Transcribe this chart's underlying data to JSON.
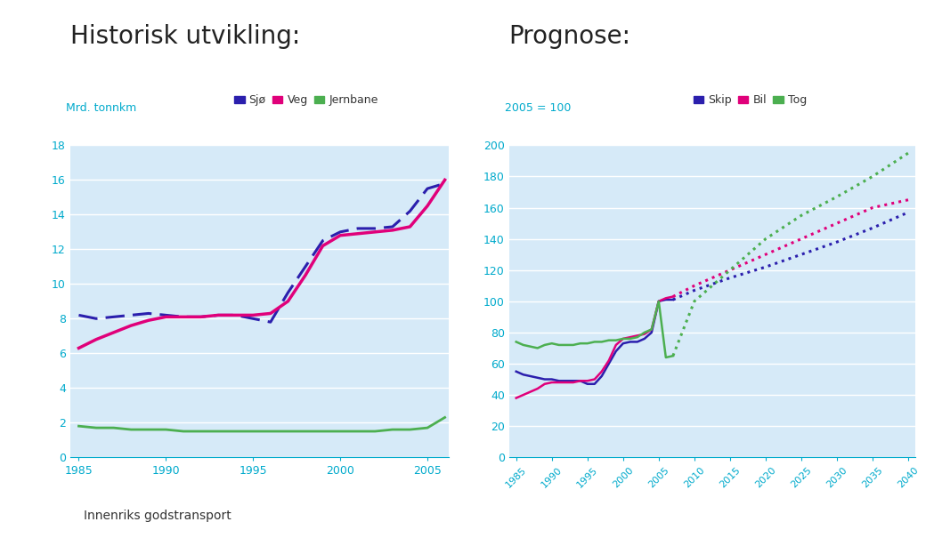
{
  "title_left": "Historisk utvikling:",
  "title_right": "Prognose:",
  "title_fontsize": 20,
  "tick_color": "#00AACC",
  "label_color": "#00AACC",
  "bg_color": "#D6EAF8",
  "white": "#FFFFFF",
  "hist_ylabel": "Mrd. tonnkm",
  "hist_ylim": [
    0,
    18
  ],
  "hist_yticks": [
    0,
    2,
    4,
    6,
    8,
    10,
    12,
    14,
    16,
    18
  ],
  "hist_xlim": [
    1984.5,
    2006.2
  ],
  "hist_xticks": [
    1985,
    1990,
    1995,
    2000,
    2005
  ],
  "sjo_x": [
    1985,
    1986,
    1987,
    1988,
    1989,
    1990,
    1991,
    1992,
    1993,
    1994,
    1995,
    1996,
    1997,
    1998,
    1999,
    2000,
    2001,
    2002,
    2003,
    2004,
    2005,
    2006
  ],
  "sjo_y": [
    8.2,
    8.0,
    8.1,
    8.2,
    8.3,
    8.2,
    8.1,
    8.1,
    8.2,
    8.2,
    8.0,
    7.8,
    9.5,
    11.0,
    12.5,
    13.0,
    13.2,
    13.2,
    13.3,
    14.2,
    15.5,
    15.8
  ],
  "veg_x": [
    1985,
    1986,
    1987,
    1988,
    1989,
    1990,
    1991,
    1992,
    1993,
    1994,
    1995,
    1996,
    1997,
    1998,
    1999,
    2000,
    2001,
    2002,
    2003,
    2004,
    2005,
    2006
  ],
  "veg_y": [
    6.3,
    6.8,
    7.2,
    7.6,
    7.9,
    8.1,
    8.1,
    8.1,
    8.2,
    8.2,
    8.2,
    8.3,
    9.0,
    10.5,
    12.2,
    12.8,
    12.9,
    13.0,
    13.1,
    13.3,
    14.5,
    16.0
  ],
  "jernbane_x": [
    1985,
    1986,
    1987,
    1988,
    1989,
    1990,
    1991,
    1992,
    1993,
    1994,
    1995,
    1996,
    1997,
    1998,
    1999,
    2000,
    2001,
    2002,
    2003,
    2004,
    2005,
    2006
  ],
  "jernbane_y": [
    1.8,
    1.7,
    1.7,
    1.6,
    1.6,
    1.6,
    1.5,
    1.5,
    1.5,
    1.5,
    1.5,
    1.5,
    1.5,
    1.5,
    1.5,
    1.5,
    1.5,
    1.5,
    1.6,
    1.6,
    1.7,
    2.3
  ],
  "sjo_color": "#2B1FAD",
  "veg_color": "#E0007A",
  "jernbane_color": "#4CAF50",
  "prog_ylabel": "2005 = 100",
  "prog_ylim": [
    0,
    200
  ],
  "prog_yticks": [
    0,
    20,
    40,
    60,
    80,
    100,
    120,
    140,
    160,
    180,
    200
  ],
  "prog_xlim": [
    1984,
    2041
  ],
  "prog_xticks": [
    1985,
    1990,
    1995,
    2000,
    2005,
    2010,
    2015,
    2020,
    2025,
    2030,
    2035,
    2040
  ],
  "skip_hist_x": [
    1985,
    1986,
    1987,
    1988,
    1989,
    1990,
    1991,
    1992,
    1993,
    1994,
    1995,
    1996,
    1997,
    1998,
    1999,
    2000,
    2001,
    2002,
    2003,
    2004,
    2005,
    2006,
    2007
  ],
  "skip_hist_y": [
    55,
    53,
    52,
    51,
    50,
    50,
    49,
    49,
    49,
    49,
    47,
    47,
    52,
    60,
    68,
    73,
    74,
    74,
    76,
    80,
    100,
    101,
    101
  ],
  "bil_hist_x": [
    1985,
    1986,
    1987,
    1988,
    1989,
    1990,
    1991,
    1992,
    1993,
    1994,
    1995,
    1996,
    1997,
    1998,
    1999,
    2000,
    2001,
    2002,
    2003,
    2004,
    2005,
    2006,
    2007
  ],
  "bil_hist_y": [
    38,
    40,
    42,
    44,
    47,
    48,
    48,
    48,
    48,
    49,
    49,
    50,
    55,
    62,
    72,
    76,
    77,
    78,
    79,
    82,
    100,
    102,
    103
  ],
  "tog_hist_x": [
    1985,
    1986,
    1987,
    1988,
    1989,
    1990,
    1991,
    1992,
    1993,
    1994,
    1995,
    1996,
    1997,
    1998,
    1999,
    2000,
    2001,
    2002,
    2003,
    2004,
    2005,
    2006,
    2007
  ],
  "tog_hist_y": [
    74,
    72,
    71,
    70,
    72,
    73,
    72,
    72,
    72,
    73,
    73,
    74,
    74,
    75,
    75,
    76,
    76,
    77,
    80,
    82,
    100,
    64,
    65
  ],
  "skip_proj_x": [
    2007,
    2010,
    2015,
    2020,
    2025,
    2030,
    2035,
    2040
  ],
  "skip_proj_y": [
    101,
    107,
    115,
    122,
    130,
    138,
    147,
    157
  ],
  "bil_proj_x": [
    2007,
    2010,
    2015,
    2020,
    2025,
    2030,
    2035,
    2040
  ],
  "bil_proj_y": [
    103,
    110,
    120,
    130,
    140,
    150,
    160,
    165
  ],
  "tog_proj_x": [
    2007,
    2010,
    2015,
    2020,
    2025,
    2030,
    2035,
    2040
  ],
  "tog_proj_y": [
    65,
    100,
    120,
    140,
    155,
    167,
    180,
    195
  ],
  "skip_color": "#2B1FAD",
  "bil_color": "#E0007A",
  "tog_color": "#4CAF50",
  "caption": "Innenriks godstransport",
  "leg1_labels": [
    "Sjø",
    "Veg",
    "Jernbane"
  ],
  "leg2_labels": [
    "Skip",
    "Bil",
    "Tog"
  ]
}
